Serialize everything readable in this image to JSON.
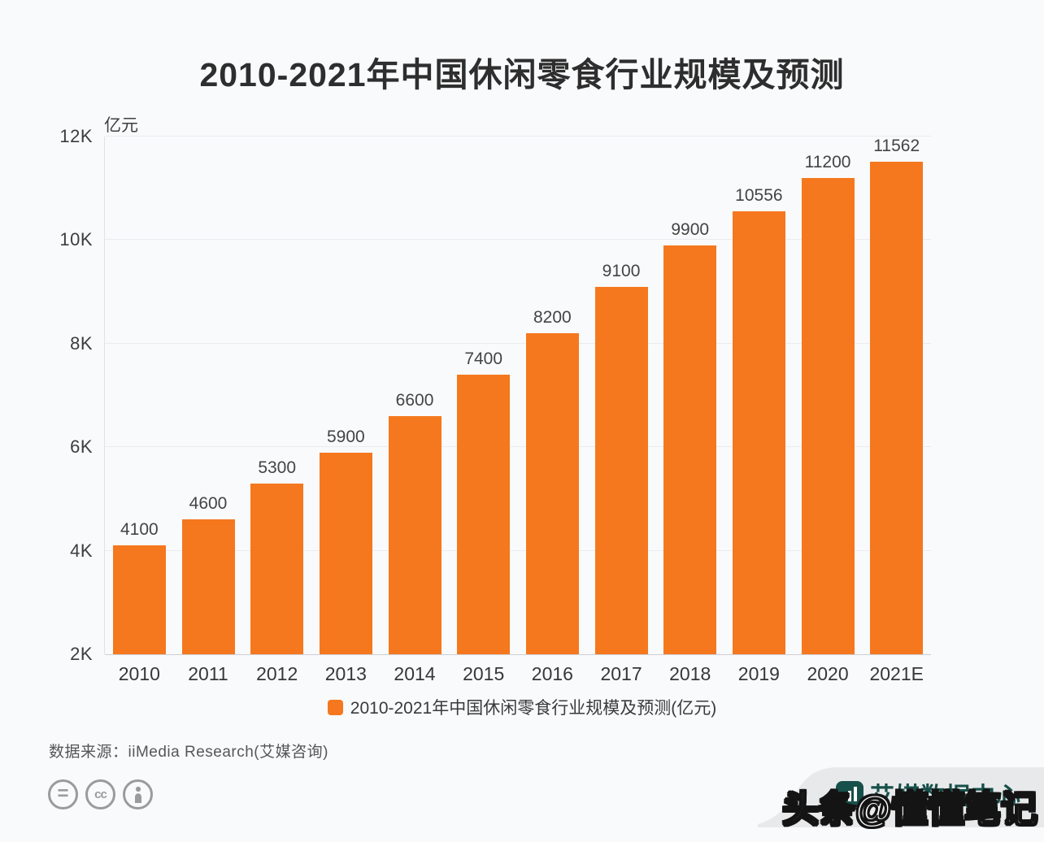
{
  "title": "2010-2021年中国休闲零食行业规模及预测",
  "unit_label": "亿元",
  "legend": {
    "label": "2010-2021年中国休闲零食行业规模及预测(亿元)",
    "color": "#f5781e"
  },
  "source_line": "数据来源：iiMedia Research(艾媒咨询)",
  "footer_icons": [
    "equals-license-icon",
    "cc-license-icon",
    "attribution-person-icon"
  ],
  "branding": {
    "logo_text": "艾媒数据中心",
    "logo_color": "#17504a",
    "banner_color": "#e8e9eb"
  },
  "watermark": "头条@懂懂笔记",
  "colors": {
    "bar": "#f5781e",
    "background": "#f9fafc",
    "gridline": "#ececf0",
    "text_dark": "#2e2e2e",
    "text_mid": "#444444"
  },
  "chart_data": {
    "type": "bar",
    "title": "2010-2021年中国休闲零食行业规模及预测",
    "categories": [
      "2010",
      "2011",
      "2012",
      "2013",
      "2014",
      "2015",
      "2016",
      "2017",
      "2018",
      "2019",
      "2020",
      "2021E"
    ],
    "values": [
      4100,
      4600,
      5300,
      5900,
      6600,
      7400,
      8200,
      9100,
      9900,
      10556,
      11200,
      11562
    ],
    "series_name": "2010-2021年中国休闲零食行业规模及预测(亿元)",
    "xlabel": "",
    "ylabel": "亿元",
    "ylim": [
      2000,
      12000
    ],
    "yticks": [
      {
        "value": 2000,
        "label": "2K"
      },
      {
        "value": 4000,
        "label": "4K"
      },
      {
        "value": 6000,
        "label": "6K"
      },
      {
        "value": 8000,
        "label": "8K"
      },
      {
        "value": 10000,
        "label": "10K"
      },
      {
        "value": 12000,
        "label": "12K"
      }
    ],
    "grid": true,
    "bar_color": "#f5781e",
    "legend_position": "bottom"
  }
}
